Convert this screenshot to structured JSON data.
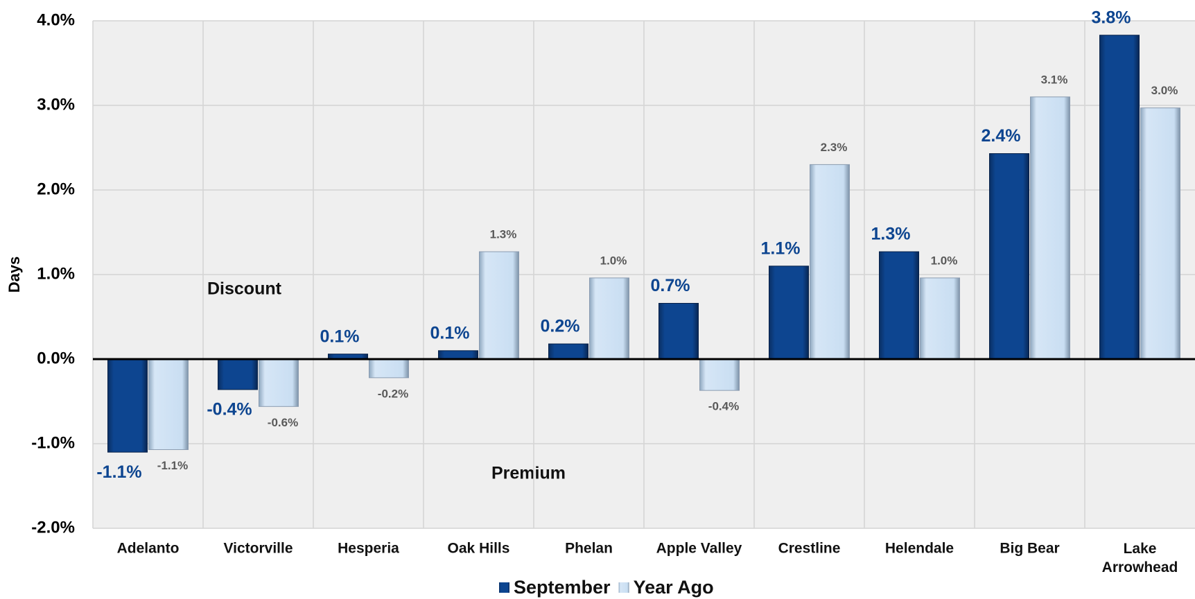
{
  "chart_data": {
    "type": "bar",
    "y_label": "Days",
    "annotations": [
      "Discount",
      "Premium"
    ],
    "categories": [
      "Adelanto",
      "Victorville",
      "Hesperia",
      "Oak Hills",
      "Phelan",
      "Apple Valley",
      "Crestline",
      "Helendale",
      "Big Bear",
      "Lake Arrowhead"
    ],
    "series": [
      {
        "name": "September",
        "color": "#0b3d7f",
        "values": [
          -1.1,
          -0.36,
          0.06,
          0.1,
          0.18,
          0.66,
          1.1,
          1.27,
          2.43,
          3.83
        ],
        "value_labels": [
          "-1.1%",
          "-0.4%",
          "0.1%",
          "0.1%",
          "0.2%",
          "0.7%",
          "1.1%",
          "1.3%",
          "2.4%",
          "3.8%"
        ]
      },
      {
        "name": "Year Ago",
        "color": "#c9def2",
        "values": [
          -1.07,
          -0.56,
          -0.22,
          1.27,
          0.96,
          -0.37,
          2.3,
          0.96,
          3.1,
          2.97
        ],
        "value_labels": [
          "-1.1%",
          "-0.6%",
          "-0.2%",
          "1.3%",
          "1.0%",
          "-0.4%",
          "2.3%",
          "1.0%",
          "3.1%",
          "3.0%"
        ]
      }
    ],
    "ylim": [
      -2,
      4
    ],
    "yticks": [
      {
        "value": -2,
        "label": "-2.0%"
      },
      {
        "value": -1,
        "label": "-1.0%"
      },
      {
        "value": 0,
        "label": "0.0%"
      },
      {
        "value": 1,
        "label": "1.0%"
      },
      {
        "value": 2,
        "label": "2.0%"
      },
      {
        "value": 3,
        "label": "3.0%"
      },
      {
        "value": 4,
        "label": "4.0%"
      }
    ],
    "grid": true,
    "legend": "bottom"
  }
}
